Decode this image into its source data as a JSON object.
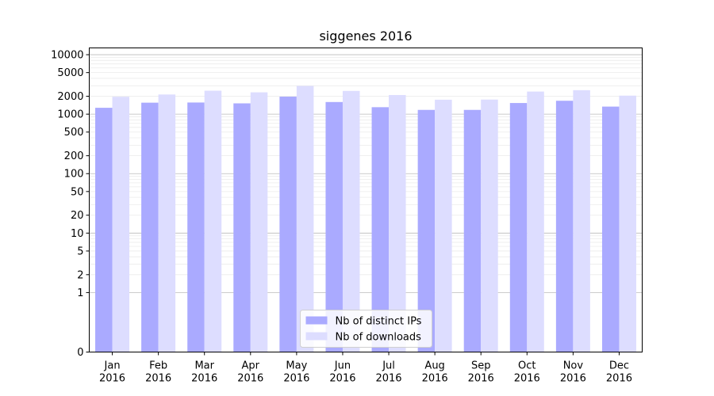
{
  "chart_data": {
    "type": "bar",
    "title": "siggenes 2016",
    "xlabel": "",
    "ylabel": "",
    "y_scale": "symlog",
    "ylim": [
      0,
      13000
    ],
    "y_ticks": [
      0,
      1,
      2,
      5,
      10,
      20,
      50,
      100,
      200,
      500,
      1000,
      2000,
      5000,
      10000
    ],
    "categories": [
      "Jan\n2016",
      "Feb\n2016",
      "Mar\n2016",
      "Apr\n2016",
      "May\n2016",
      "Jun\n2016",
      "Jul\n2016",
      "Aug\n2016",
      "Sep\n2016",
      "Oct\n2016",
      "Nov\n2016",
      "Dec\n2016"
    ],
    "series": [
      {
        "name": "Nb of distinct IPs",
        "color": "#aaaaff",
        "values": [
          1280,
          1560,
          1570,
          1520,
          1970,
          1600,
          1310,
          1180,
          1180,
          1540,
          1680,
          1340
        ]
      },
      {
        "name": "Nb of downloads",
        "color": "#ddddff",
        "values": [
          1960,
          2140,
          2480,
          2330,
          2980,
          2460,
          2100,
          1750,
          1760,
          2400,
          2530,
          2050
        ]
      }
    ],
    "grid": true,
    "legend_position": "bottom-center"
  }
}
